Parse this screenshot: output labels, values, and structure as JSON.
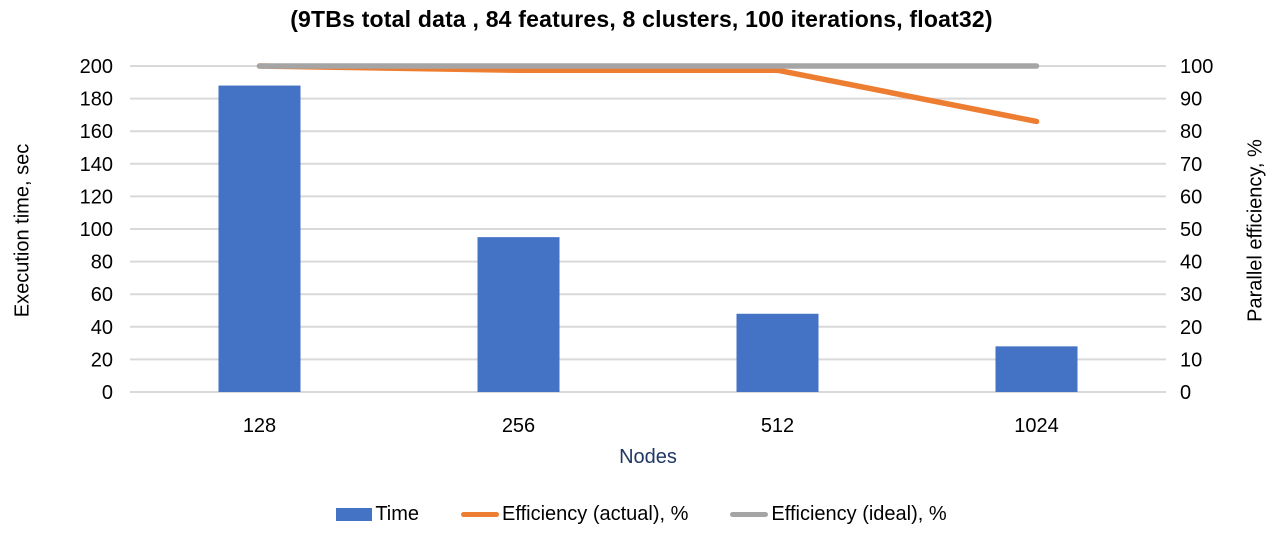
{
  "chart_data": {
    "type": "bar-line-combo",
    "title": "(9TBs total data , 84 features, 8 clusters, 100 iterations, float32)",
    "categories": [
      "128",
      "256",
      "512",
      "1024"
    ],
    "x_axis": {
      "title": "Nodes",
      "title_color": "#1F3864"
    },
    "left_axis": {
      "title": "Execution time, sec",
      "min": 0,
      "max": 200,
      "step": 20
    },
    "right_axis": {
      "title": "Parallel efficiency, %",
      "min": 0,
      "max": 100,
      "step": 10
    },
    "series": [
      {
        "name": "Time",
        "type": "bar",
        "axis": "left",
        "color": "#4472C4",
        "values": [
          188,
          95,
          48,
          28
        ]
      },
      {
        "name": "Efficiency (actual), %",
        "type": "line",
        "axis": "right",
        "color": "#ED7D31",
        "values": [
          100,
          98.7,
          98.7,
          83
        ]
      },
      {
        "name": "Efficiency (ideal), %",
        "type": "line",
        "axis": "right",
        "color": "#A5A5A5",
        "values": [
          100,
          100,
          100,
          100
        ]
      }
    ],
    "grid": true,
    "gridline_color": "#D9D9D9",
    "tick_label_color": "#000000",
    "legend_position": "bottom"
  }
}
